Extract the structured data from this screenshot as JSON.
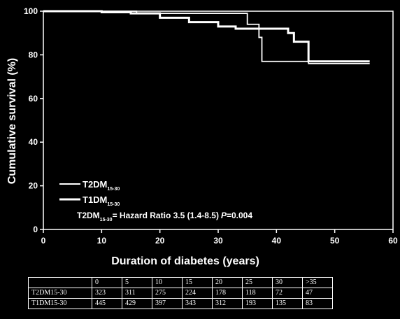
{
  "chart_data": {
    "type": "line",
    "title": "",
    "xlabel": "Duration of diabetes (years)",
    "ylabel": "Cumulative survival (%)",
    "xlim": [
      0,
      60
    ],
    "ylim": [
      0,
      100
    ],
    "xticks": [
      "0",
      "10",
      "20",
      "30",
      "40",
      "50",
      "60"
    ],
    "yticks": [
      "0",
      "20",
      "40",
      "60",
      "80",
      "100"
    ],
    "grid": false,
    "legend_position": "bottom-left",
    "series": [
      {
        "name": "T2DM",
        "name_sub": "15-30",
        "style": "step",
        "x": [
          0,
          16,
          35,
          37,
          37.5,
          45,
          45.5,
          56
        ],
        "y": [
          100,
          99,
          94,
          88,
          77,
          77,
          76,
          76
        ]
      },
      {
        "name": "T1DM",
        "name_sub": "15-30",
        "style": "step",
        "x": [
          0,
          10,
          15,
          20,
          25,
          30,
          33,
          41,
          42,
          43,
          45,
          45.5,
          56
        ],
        "y": [
          100,
          99.5,
          99,
          97,
          95,
          93,
          92,
          92,
          90,
          86,
          86,
          77,
          77
        ]
      }
    ],
    "annotation": {
      "prefix": "T2DM",
      "prefix_sub": "15-30",
      "text": "= Hazard Ratio 3.5 (1.4-8.5)",
      "p_label": "P",
      "p_value": "=0.004"
    },
    "risk_table": {
      "header": [
        "0",
        "5",
        "10",
        "15",
        "20",
        "25",
        "30",
        ">35"
      ],
      "rows": [
        {
          "label": "T2DM15-30",
          "values": [
            "323",
            "311",
            "275",
            "224",
            "178",
            "118",
            "72",
            "47"
          ]
        },
        {
          "label": "T1DM15-30",
          "values": [
            "445",
            "429",
            "397",
            "343",
            "312",
            "193",
            "135",
            "83"
          ]
        }
      ]
    }
  }
}
